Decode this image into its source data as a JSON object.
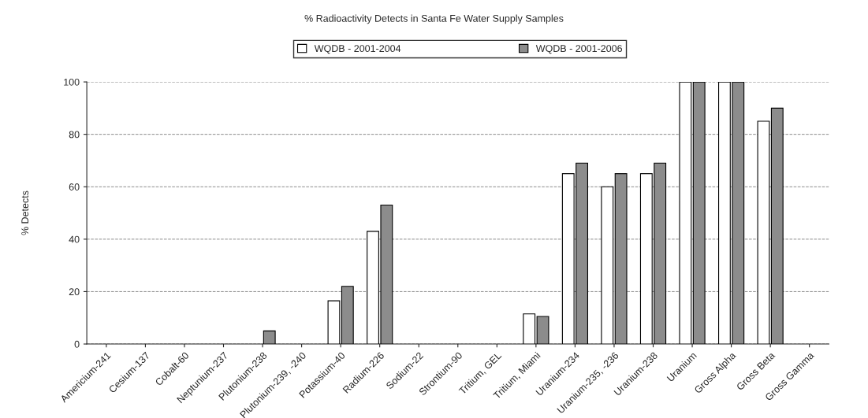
{
  "chart_data": {
    "type": "bar",
    "title": "% Radioactivity Detects in Santa Fe Water Supply Samples",
    "ylabel": "% Detects",
    "categories": [
      "Americium-241",
      "Cesium-137",
      "Cobalt-60",
      "Neptunium-237",
      "Plutonium-238",
      "Plutonium-239, -240",
      "Potassium-40",
      "Radium-226",
      "Sodium-22",
      "Strontium-90",
      "Tritium, GEL",
      "Tritium, Miami",
      "Uranium-234",
      "Uranium-235, -236",
      "Uranium-238",
      "Uranium",
      "Gross Alpha",
      "Gross Beta",
      "Gross Gamma"
    ],
    "series": [
      {
        "name": "WQDB - 2001-2004",
        "color": "#ffffff",
        "values": [
          0,
          0,
          0,
          0,
          0,
          0,
          16.5,
          43,
          0,
          0,
          0,
          11.5,
          65,
          60,
          65,
          100,
          100,
          85,
          0
        ]
      },
      {
        "name": "WQDB - 2001-2006",
        "color": "#8c8c8c",
        "values": [
          0,
          0,
          0,
          0,
          5,
          0,
          22,
          53,
          0,
          0,
          0,
          10.5,
          69,
          65,
          69,
          100,
          100,
          90,
          0
        ]
      }
    ],
    "ylim": [
      0,
      100
    ],
    "yticks": [
      0,
      20,
      40,
      60,
      80,
      100
    ],
    "grid": "y",
    "legend": "top"
  }
}
